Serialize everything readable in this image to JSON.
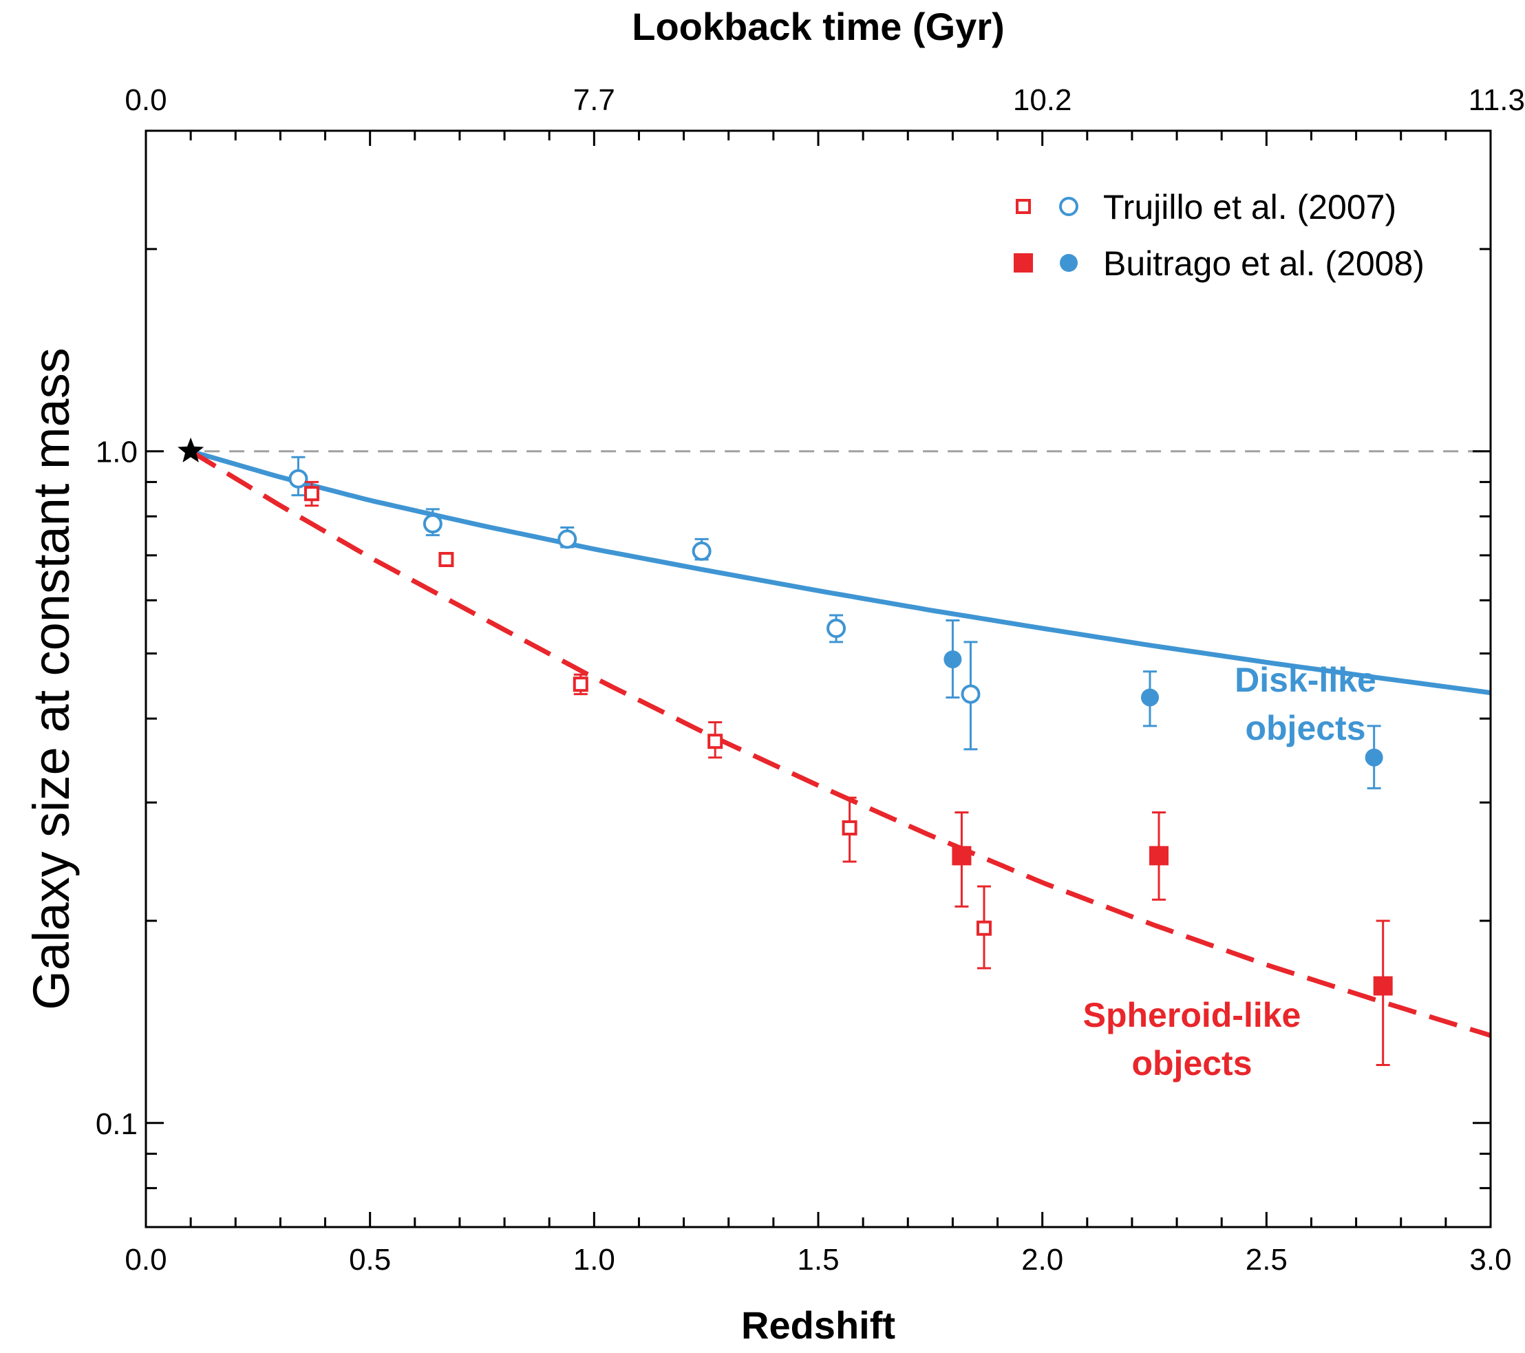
{
  "chart_data": {
    "type": "scatter",
    "title": "",
    "xlabel": "Redshift",
    "ylabel": "Galaxy size at constant mass",
    "top_axis_label": "Lookback time (Gyr)",
    "xlim": [
      0.0,
      3.0
    ],
    "ylim": [
      0.07,
      3.0
    ],
    "y_scale": "log",
    "x_ticks": [
      0.0,
      0.5,
      1.0,
      1.5,
      2.0,
      2.5,
      3.0
    ],
    "x_tick_labels": [
      "0.0",
      "0.5",
      "1.0",
      "1.5",
      "2.0",
      "2.5",
      "3.0"
    ],
    "y_ticks": [
      0.1,
      1.0
    ],
    "y_tick_labels": [
      "0.1",
      "1.0"
    ],
    "top_ticks": [
      0.0,
      1.0,
      2.0,
      3.0
    ],
    "top_tick_labels": [
      "0.0",
      "7.7",
      "10.2",
      "11.3"
    ],
    "grid": false,
    "legend_position": "top-right",
    "reference_line": {
      "y": 1.0,
      "style": "dashed",
      "color": "#a0a0a0"
    },
    "reference_point": {
      "x": 0.1,
      "y": 1.0,
      "marker": "star",
      "color": "#000000"
    },
    "colors": {
      "disk": "#3f95d3",
      "spheroid": "#e8262b"
    },
    "legend": [
      {
        "label": "Trujillo et al. (2007)",
        "markers": [
          "open-square",
          "open-circle"
        ]
      },
      {
        "label": "Buitrago et al. (2008)",
        "markers": [
          "filled-square",
          "filled-circle"
        ]
      }
    ],
    "series": [
      {
        "group": "disk",
        "source": "trujillo",
        "marker": "open-circle",
        "points": [
          {
            "x": 0.34,
            "y": 0.91,
            "lo": 0.86,
            "hi": 0.98
          },
          {
            "x": 0.64,
            "y": 0.78,
            "lo": 0.75,
            "hi": 0.82
          },
          {
            "x": 0.94,
            "y": 0.74,
            "lo": 0.72,
            "hi": 0.77
          },
          {
            "x": 1.24,
            "y": 0.71,
            "lo": 0.69,
            "hi": 0.74
          },
          {
            "x": 1.54,
            "y": 0.545,
            "lo": 0.52,
            "hi": 0.57
          },
          {
            "x": 1.84,
            "y": 0.435,
            "lo": 0.36,
            "hi": 0.52
          }
        ]
      },
      {
        "group": "disk",
        "source": "buitrago",
        "marker": "filled-circle",
        "points": [
          {
            "x": 1.8,
            "y": 0.49,
            "lo": 0.43,
            "hi": 0.56
          },
          {
            "x": 2.24,
            "y": 0.43,
            "lo": 0.39,
            "hi": 0.47
          },
          {
            "x": 2.74,
            "y": 0.35,
            "lo": 0.315,
            "hi": 0.39
          }
        ]
      },
      {
        "group": "spheroid",
        "source": "trujillo",
        "marker": "open-square",
        "points": [
          {
            "x": 0.37,
            "y": 0.865,
            "lo": 0.83,
            "hi": 0.9
          },
          {
            "x": 0.67,
            "y": 0.69,
            "lo": 0.675,
            "hi": 0.705
          },
          {
            "x": 0.97,
            "y": 0.45,
            "lo": 0.435,
            "hi": 0.465
          },
          {
            "x": 1.27,
            "y": 0.37,
            "lo": 0.35,
            "hi": 0.395
          },
          {
            "x": 1.57,
            "y": 0.275,
            "lo": 0.245,
            "hi": 0.305
          },
          {
            "x": 1.87,
            "y": 0.195,
            "lo": 0.17,
            "hi": 0.225
          }
        ]
      },
      {
        "group": "spheroid",
        "source": "buitrago",
        "marker": "filled-square",
        "points": [
          {
            "x": 1.82,
            "y": 0.25,
            "lo": 0.21,
            "hi": 0.29
          },
          {
            "x": 2.26,
            "y": 0.25,
            "lo": 0.215,
            "hi": 0.29
          },
          {
            "x": 2.76,
            "y": 0.16,
            "lo": 0.122,
            "hi": 0.2
          }
        ]
      }
    ],
    "fits": [
      {
        "group": "disk",
        "style": "solid",
        "x": [
          0.1,
          0.3,
          0.5,
          0.75,
          1.0,
          1.25,
          1.5,
          1.75,
          2.0,
          2.25,
          2.5,
          2.75,
          3.0
        ],
        "y": [
          1.0,
          0.915,
          0.845,
          0.775,
          0.715,
          0.665,
          0.62,
          0.58,
          0.545,
          0.513,
          0.485,
          0.46,
          0.437
        ]
      },
      {
        "group": "spheroid",
        "style": "dashed",
        "x": [
          0.1,
          0.3,
          0.5,
          0.75,
          1.0,
          1.25,
          1.5,
          1.75,
          2.0,
          2.25,
          2.5,
          2.75,
          3.0
        ],
        "y": [
          1.0,
          0.83,
          0.695,
          0.565,
          0.46,
          0.38,
          0.318,
          0.268,
          0.228,
          0.197,
          0.172,
          0.152,
          0.135
        ]
      }
    ],
    "annotations": [
      {
        "group": "disk",
        "lines": [
          "Disk-like",
          "objects"
        ]
      },
      {
        "group": "spheroid",
        "lines": [
          "Spheroid-like",
          "objects"
        ]
      }
    ]
  }
}
